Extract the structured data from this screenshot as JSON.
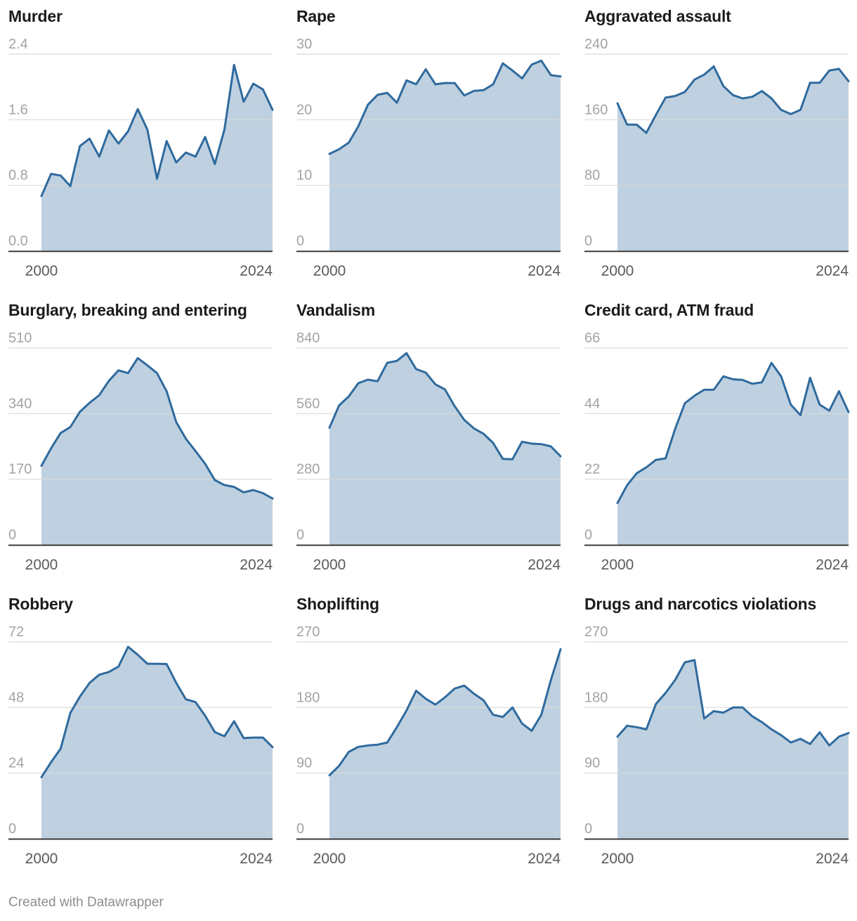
{
  "footer": {
    "credit": "Created with Datawrapper"
  },
  "colors": {
    "line": "#2f6a9e",
    "area": "#bfd1e0",
    "grid": "#d9d9d9",
    "tick": "#a3a3a3",
    "year": "#5a5a5a",
    "baseline": "#222222"
  },
  "chart_data": [
    {
      "type": "area",
      "title": "Murder",
      "ylim": [
        0,
        2.4
      ],
      "yticks": [
        "0.0",
        "0.8",
        "1.6",
        "2.4"
      ],
      "xticks": [
        "2000",
        "2024"
      ],
      "x": [
        2000,
        2001,
        2002,
        2003,
        2004,
        2005,
        2006,
        2007,
        2008,
        2009,
        2010,
        2011,
        2012,
        2013,
        2014,
        2015,
        2016,
        2017,
        2018,
        2019,
        2020,
        2021,
        2022,
        2023,
        2024
      ],
      "values": [
        0.67,
        0.94,
        0.92,
        0.79,
        1.28,
        1.37,
        1.15,
        1.47,
        1.31,
        1.46,
        1.73,
        1.48,
        0.88,
        1.34,
        1.08,
        1.2,
        1.15,
        1.39,
        1.06,
        1.48,
        2.27,
        1.82,
        2.04,
        1.97,
        1.72
      ]
    },
    {
      "type": "area",
      "title": "Rape",
      "ylim": [
        0,
        30
      ],
      "yticks": [
        "0",
        "10",
        "20",
        "30"
      ],
      "xticks": [
        "2000",
        "2024"
      ],
      "x": [
        2000,
        2001,
        2002,
        2003,
        2004,
        2005,
        2006,
        2007,
        2008,
        2009,
        2010,
        2011,
        2012,
        2013,
        2014,
        2015,
        2016,
        2017,
        2018,
        2019,
        2020,
        2021,
        2022,
        2023,
        2024
      ],
      "values": [
        14.8,
        15.5,
        16.5,
        19,
        22.3,
        23.8,
        24.1,
        22.6,
        26,
        25.4,
        27.7,
        25.4,
        25.6,
        25.6,
        23.7,
        24.4,
        24.5,
        25.4,
        28.6,
        27.5,
        26.3,
        28.4,
        29,
        26.8,
        26.6
      ]
    },
    {
      "type": "area",
      "title": "Aggravated assault",
      "ylim": [
        0,
        240
      ],
      "yticks": [
        "0",
        "80",
        "160",
        "240"
      ],
      "xticks": [
        "2000",
        "2024"
      ],
      "x": [
        2000,
        2001,
        2002,
        2003,
        2004,
        2005,
        2006,
        2007,
        2008,
        2009,
        2010,
        2011,
        2012,
        2013,
        2014,
        2015,
        2016,
        2017,
        2018,
        2019,
        2020,
        2021,
        2022,
        2023,
        2024
      ],
      "values": [
        180,
        154,
        154,
        144,
        166,
        187,
        189,
        194,
        209,
        215,
        225,
        201,
        190,
        186,
        188,
        195,
        186,
        172,
        167,
        172,
        205,
        205,
        220,
        222,
        207
      ]
    },
    {
      "type": "area",
      "title": "Burglary, breaking and entering",
      "ylim": [
        0,
        510
      ],
      "yticks": [
        "0",
        "170",
        "340",
        "510"
      ],
      "xticks": [
        "2000",
        "2024"
      ],
      "x": [
        2000,
        2001,
        2002,
        2003,
        2004,
        2005,
        2006,
        2007,
        2008,
        2009,
        2010,
        2011,
        2012,
        2013,
        2014,
        2015,
        2016,
        2017,
        2018,
        2019,
        2020,
        2021,
        2022,
        2023,
        2024
      ],
      "values": [
        205,
        250,
        290,
        305,
        345,
        368,
        388,
        425,
        452,
        445,
        484,
        465,
        445,
        398,
        318,
        275,
        243,
        210,
        168,
        155,
        150,
        136,
        142,
        134,
        120
      ]
    },
    {
      "type": "area",
      "title": "Vandalism",
      "ylim": [
        0,
        840
      ],
      "yticks": [
        "0",
        "280",
        "560",
        "840"
      ],
      "xticks": [
        "2000",
        "2024"
      ],
      "x": [
        2000,
        2001,
        2002,
        2003,
        2004,
        2005,
        2006,
        2007,
        2008,
        2009,
        2010,
        2011,
        2012,
        2013,
        2014,
        2015,
        2016,
        2017,
        2018,
        2019,
        2020,
        2021,
        2022,
        2023,
        2024
      ],
      "values": [
        500,
        595,
        633,
        690,
        705,
        698,
        777,
        785,
        818,
        750,
        735,
        685,
        663,
        592,
        533,
        497,
        474,
        435,
        367,
        365,
        440,
        432,
        430,
        420,
        378
      ]
    },
    {
      "type": "area",
      "title": "Credit card, ATM fraud",
      "ylim": [
        0,
        66
      ],
      "yticks": [
        "0",
        "22",
        "44",
        "66"
      ],
      "xticks": [
        "2000",
        "2024"
      ],
      "x": [
        2000,
        2001,
        2002,
        2003,
        2004,
        2005,
        2006,
        2007,
        2008,
        2009,
        2010,
        2011,
        2012,
        2013,
        2014,
        2015,
        2016,
        2017,
        2018,
        2019,
        2020,
        2021,
        2022,
        2023,
        2024
      ],
      "values": [
        14,
        20,
        24,
        26,
        28.5,
        29,
        39,
        47.5,
        50,
        52,
        52,
        56.5,
        55.5,
        55.3,
        54,
        54.5,
        61,
        56.5,
        47,
        43.5,
        56,
        47,
        45,
        51.5,
        44.5
      ]
    },
    {
      "type": "area",
      "title": "Robbery",
      "ylim": [
        0,
        72
      ],
      "yticks": [
        "0",
        "24",
        "48",
        "72"
      ],
      "xticks": [
        "2000",
        "2024"
      ],
      "x": [
        2000,
        2001,
        2002,
        2003,
        2004,
        2005,
        2006,
        2007,
        2008,
        2009,
        2010,
        2011,
        2012,
        2013,
        2014,
        2015,
        2016,
        2017,
        2018,
        2019,
        2020,
        2021,
        2022,
        2023,
        2024
      ],
      "values": [
        22.5,
        28,
        33,
        46,
        52,
        57,
        60,
        61,
        63,
        70.2,
        67.3,
        64,
        64,
        63.9,
        57,
        51,
        50,
        45,
        39,
        37.5,
        43,
        36.8,
        37,
        37,
        33.5
      ]
    },
    {
      "type": "area",
      "title": "Shoplifting",
      "ylim": [
        0,
        270
      ],
      "yticks": [
        "0",
        "90",
        "180",
        "270"
      ],
      "xticks": [
        "2000",
        "2024"
      ],
      "x": [
        2000,
        2001,
        2002,
        2003,
        2004,
        2005,
        2006,
        2007,
        2008,
        2009,
        2010,
        2011,
        2012,
        2013,
        2014,
        2015,
        2016,
        2017,
        2018,
        2019,
        2020,
        2021,
        2022,
        2023,
        2024
      ],
      "values": [
        87,
        100,
        119,
        126,
        128,
        129,
        132,
        153,
        176,
        203,
        192,
        184,
        194,
        206,
        210,
        199,
        190,
        170,
        167,
        180,
        158,
        148,
        170,
        218,
        260
      ]
    },
    {
      "type": "area",
      "title": "Drugs and narcotics violations",
      "ylim": [
        0,
        270
      ],
      "yticks": [
        "0",
        "90",
        "180",
        "270"
      ],
      "xticks": [
        "2000",
        "2024"
      ],
      "x": [
        2000,
        2001,
        2002,
        2003,
        2004,
        2005,
        2006,
        2007,
        2008,
        2009,
        2010,
        2011,
        2012,
        2013,
        2014,
        2015,
        2016,
        2017,
        2018,
        2019,
        2020,
        2021,
        2022,
        2023,
        2024
      ],
      "values": [
        140,
        155,
        153,
        150,
        185,
        200,
        218,
        242,
        245,
        165,
        175,
        173,
        180,
        180,
        168,
        160,
        150,
        142,
        132,
        137,
        130,
        146,
        128,
        140,
        145
      ]
    }
  ]
}
